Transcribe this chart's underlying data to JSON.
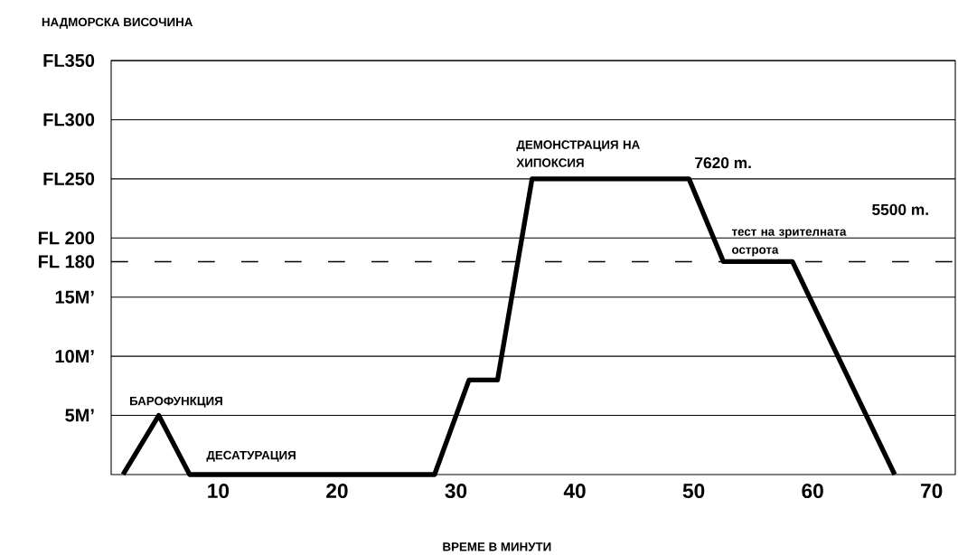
{
  "chart_data": {
    "type": "line",
    "xlabel": "ВРЕМЕ В МИНУТИ",
    "ylabel": "НАДМОРСКА  ВИСОЧИНА",
    "x": [
      2,
      5,
      7.6,
      28.2,
      31.1,
      33.5,
      36.4,
      49.6,
      52.5,
      58.3,
      66.9
    ],
    "series": [
      {
        "color": "#000000",
        "values": [
          0,
          5,
          0,
          0,
          8,
          8,
          25,
          25,
          18,
          18,
          0
        ]
      }
    ],
    "xlim": [
      1,
      72
    ],
    "xticks": [
      10,
      20,
      30,
      40,
      50,
      60,
      70
    ],
    "ylim": [
      0,
      35
    ],
    "yticks": [
      {
        "value": 5,
        "label": "5M’"
      },
      {
        "value": 10,
        "label": "10M’"
      },
      {
        "value": 15,
        "label": "15M’"
      },
      {
        "value": 20,
        "label": "FL 200"
      },
      {
        "value": 25,
        "label": "FL250"
      },
      {
        "value": 30,
        "label": "FL300"
      },
      {
        "value": 35,
        "label": "FL350"
      }
    ],
    "grid": "y",
    "marker": "none",
    "line_style": "solid",
    "ref_lines": [
      {
        "axis": "y",
        "value": 18,
        "label": "FL 180",
        "line_style": "dashed",
        "color": "#000000"
      }
    ],
    "annotations": [
      "БАРОФУНКЦИЯ",
      "ДЕСАТУРАЦИЯ",
      "ДЕМОНСТРАЦИЯ НА ХИПОКСИЯ",
      "7620 m.",
      "тест на зрителната острота",
      "5500 m."
    ]
  }
}
